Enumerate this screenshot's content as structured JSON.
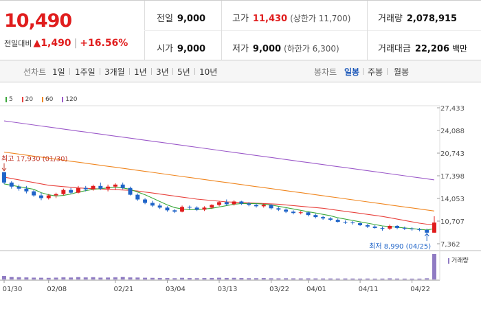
{
  "header": {
    "current_price": "10,490",
    "change_label": "전일대비",
    "change_arrow": "▲",
    "change_value": "1,490",
    "change_rate": "+16.56%",
    "prev_close": {
      "label": "전일",
      "value": "9,000"
    },
    "open": {
      "label": "시가",
      "value": "9,000"
    },
    "high": {
      "label": "고가",
      "value": "11,430",
      "limit": "(상한가 11,700)"
    },
    "low": {
      "label": "저가",
      "value": "9,000",
      "limit": "(하한가 6,300)"
    },
    "volume": {
      "label": "거래량",
      "value": "2,078,915"
    },
    "amount": {
      "label": "거래대금",
      "value": "22,206",
      "unit": "백만"
    }
  },
  "toolbar": {
    "line_chart_label": "선차트",
    "periods": [
      "1일",
      "1주일",
      "3개월",
      "1년",
      "3년",
      "5년",
      "10년"
    ],
    "candle_chart_label": "봉차트",
    "candle_periods": [
      "일봉",
      "주봉",
      "월봉"
    ],
    "active_candle": "일봉"
  },
  "colors": {
    "up": "#e01d1d",
    "down": "#1f64c8",
    "ma5": "#3aa83a",
    "ma20": "#e8413c",
    "ma60": "#f0861f",
    "ma120": "#9b59c9",
    "volume": "#8f7bc3"
  },
  "chart_data": {
    "type": "candlestick",
    "y_ticks": [
      "27,433",
      "24,088",
      "20,743",
      "17,398",
      "14,053",
      "10,707",
      "7,362"
    ],
    "y_range": [
      7362,
      27433
    ],
    "legend": [
      {
        "name": "5",
        "color": "#3aa83a"
      },
      {
        "name": "20",
        "color": "#e8413c"
      },
      {
        "name": "60",
        "color": "#f0861f"
      },
      {
        "name": "120",
        "color": "#9b59c9"
      }
    ],
    "x_labels": [
      {
        "index": 0,
        "label": "01/30"
      },
      {
        "index": 6,
        "label": "02/08"
      },
      {
        "index": 15,
        "label": "02/21"
      },
      {
        "index": 22,
        "label": "03/04"
      },
      {
        "index": 29,
        "label": "03/13"
      },
      {
        "index": 36,
        "label": "03/22"
      },
      {
        "index": 41,
        "label": "04/01"
      },
      {
        "index": 48,
        "label": "04/11"
      },
      {
        "index": 55,
        "label": "04/22"
      }
    ],
    "high_annotation": {
      "label": "최고 17,930 (01/30)",
      "index": 0,
      "value": 17930
    },
    "low_annotation": {
      "label": "최저 8,990 (04/25)",
      "index": 57,
      "value": 8990
    },
    "candles": [
      [
        17930,
        17930,
        16200,
        16400
      ],
      [
        16400,
        16600,
        15500,
        15800
      ],
      [
        15800,
        16100,
        15200,
        15500
      ],
      [
        15500,
        15900,
        14800,
        15100
      ],
      [
        15100,
        15300,
        14300,
        14500
      ],
      [
        14500,
        14900,
        13800,
        14100
      ],
      [
        14100,
        14700,
        13900,
        14500
      ],
      [
        14500,
        14900,
        14100,
        14700
      ],
      [
        14700,
        15500,
        14500,
        15300
      ],
      [
        15300,
        15600,
        14700,
        14900
      ],
      [
        14900,
        15900,
        14800,
        15600
      ],
      [
        15600,
        15900,
        15100,
        15400
      ],
      [
        15400,
        16100,
        15200,
        15900
      ],
      [
        15900,
        16400,
        15300,
        15500
      ],
      [
        15500,
        16100,
        15100,
        15800
      ],
      [
        15800,
        16300,
        15300,
        16100
      ],
      [
        16100,
        16400,
        15400,
        15600
      ],
      [
        15600,
        15800,
        14500,
        14600
      ],
      [
        14600,
        14800,
        13700,
        13900
      ],
      [
        13900,
        14100,
        13200,
        13400
      ],
      [
        13400,
        13700,
        12800,
        13000
      ],
      [
        13000,
        13300,
        12500,
        12700
      ],
      [
        12700,
        12900,
        12100,
        12300
      ],
      [
        12300,
        12500,
        11900,
        12100
      ],
      [
        12100,
        13000,
        12000,
        12800
      ],
      [
        12800,
        13000,
        12400,
        12700
      ],
      [
        12700,
        12900,
        12200,
        12400
      ],
      [
        12400,
        12900,
        12200,
        12700
      ],
      [
        12700,
        13200,
        12500,
        13100
      ],
      [
        13100,
        13700,
        12900,
        13500
      ],
      [
        13500,
        13900,
        13000,
        13200
      ],
      [
        13200,
        13800,
        13000,
        13600
      ],
      [
        13600,
        13700,
        13100,
        13300
      ],
      [
        13300,
        13500,
        12900,
        13100
      ],
      [
        13100,
        13300,
        12700,
        12900
      ],
      [
        12900,
        13300,
        12700,
        13100
      ],
      [
        13100,
        13200,
        12400,
        12600
      ],
      [
        12600,
        12800,
        12200,
        12400
      ],
      [
        12400,
        12600,
        11900,
        12100
      ],
      [
        12100,
        12300,
        11700,
        11900
      ],
      [
        11900,
        12200,
        11700,
        12000
      ],
      [
        12000,
        12100,
        11400,
        11600
      ],
      [
        11600,
        11800,
        11100,
        11300
      ],
      [
        11300,
        11500,
        10900,
        11100
      ],
      [
        11100,
        11300,
        10700,
        10900
      ],
      [
        10900,
        11100,
        10500,
        10600
      ],
      [
        10600,
        10800,
        10300,
        10500
      ],
      [
        10500,
        10700,
        10200,
        10400
      ],
      [
        10400,
        10500,
        10000,
        10100
      ],
      [
        10100,
        10300,
        9700,
        9900
      ],
      [
        9900,
        10100,
        9600,
        9700
      ],
      [
        9700,
        9900,
        9300,
        9600
      ],
      [
        9600,
        10200,
        9400,
        10000
      ],
      [
        10000,
        10100,
        9500,
        9700
      ],
      [
        9700,
        9900,
        9400,
        9600
      ],
      [
        9600,
        9800,
        9300,
        9500
      ],
      [
        9500,
        9700,
        9200,
        9400
      ],
      [
        9400,
        9600,
        8990,
        9000
      ],
      [
        9000,
        11430,
        9000,
        10490
      ]
    ],
    "ma5": [
      16200,
      16000,
      15800,
      15600,
      15400,
      14900,
      14600,
      14400,
      14500,
      14700,
      15000,
      15200,
      15400,
      15500,
      15600,
      15700,
      15600,
      15400,
      15000,
      14600,
      14100,
      13600,
      13100,
      12700,
      12500,
      12400,
      12400,
      12500,
      12600,
      12800,
      13000,
      13200,
      13300,
      13300,
      13300,
      13200,
      13100,
      12900,
      12700,
      12500,
      12300,
      12100,
      11900,
      11700,
      11500,
      11200,
      11000,
      10800,
      10600,
      10400,
      10200,
      10000,
      9900,
      9800,
      9700,
      9600,
      9500,
      9400,
      9600
    ],
    "ma20": [
      17200,
      17000,
      16800,
      16600,
      16400,
      16200,
      16000,
      15900,
      15800,
      15700,
      15600,
      15550,
      15500,
      15450,
      15400,
      15350,
      15300,
      15250,
      15150,
      15000,
      14850,
      14700,
      14550,
      14400,
      14250,
      14100,
      13950,
      13850,
      13750,
      13650,
      13550,
      13500,
      13450,
      13400,
      13350,
      13300,
      13250,
      13200,
      13100,
      13000,
      12900,
      12800,
      12700,
      12600,
      12450,
      12300,
      12150,
      12000,
      11850,
      11700,
      11550,
      11400,
      11200,
      11000,
      10800,
      10600,
      10400,
      10250,
      10200
    ],
    "ma60": [
      20900,
      20750,
      20600,
      20450,
      20300,
      20150,
      20000,
      19850,
      19700,
      19550,
      19400,
      19250,
      19100,
      18950,
      18800,
      18650,
      18500,
      18350,
      18200,
      18050,
      17900,
      17750,
      17600,
      17450,
      17300,
      17150,
      17000,
      16850,
      16700,
      16550,
      16400,
      16250,
      16100,
      15950,
      15800,
      15650,
      15500,
      15350,
      15200,
      15050,
      14900,
      14750,
      14600,
      14450,
      14300,
      14150,
      14000,
      13850,
      13700,
      13550,
      13400,
      13250,
      13100,
      12950,
      12800,
      12650,
      12500,
      12350,
      12200
    ],
    "ma120": [
      25500,
      25350,
      25200,
      25050,
      24900,
      24750,
      24600,
      24450,
      24300,
      24150,
      24000,
      23850,
      23700,
      23550,
      23400,
      23250,
      23100,
      22950,
      22800,
      22650,
      22500,
      22350,
      22200,
      22050,
      21900,
      21750,
      21600,
      21450,
      21300,
      21150,
      21000,
      20850,
      20700,
      20550,
      20400,
      20250,
      20100,
      19950,
      19800,
      19650,
      19500,
      19350,
      19200,
      19050,
      18900,
      18750,
      18600,
      18450,
      18300,
      18150,
      18000,
      17850,
      17700,
      17550,
      17400,
      17250,
      17100,
      16950,
      16800
    ],
    "volume_label": "거래량",
    "volumes": [
      280,
      210,
      190,
      170,
      150,
      140,
      130,
      150,
      180,
      160,
      200,
      170,
      190,
      150,
      160,
      180,
      210,
      170,
      160,
      140,
      130,
      120,
      110,
      100,
      130,
      110,
      100,
      110,
      120,
      140,
      120,
      130,
      110,
      100,
      100,
      110,
      95,
      90,
      95,
      90,
      85,
      90,
      85,
      80,
      80,
      75,
      80,
      75,
      70,
      75,
      70,
      72,
      90,
      75,
      70,
      68,
      70,
      95,
      2078
    ]
  }
}
